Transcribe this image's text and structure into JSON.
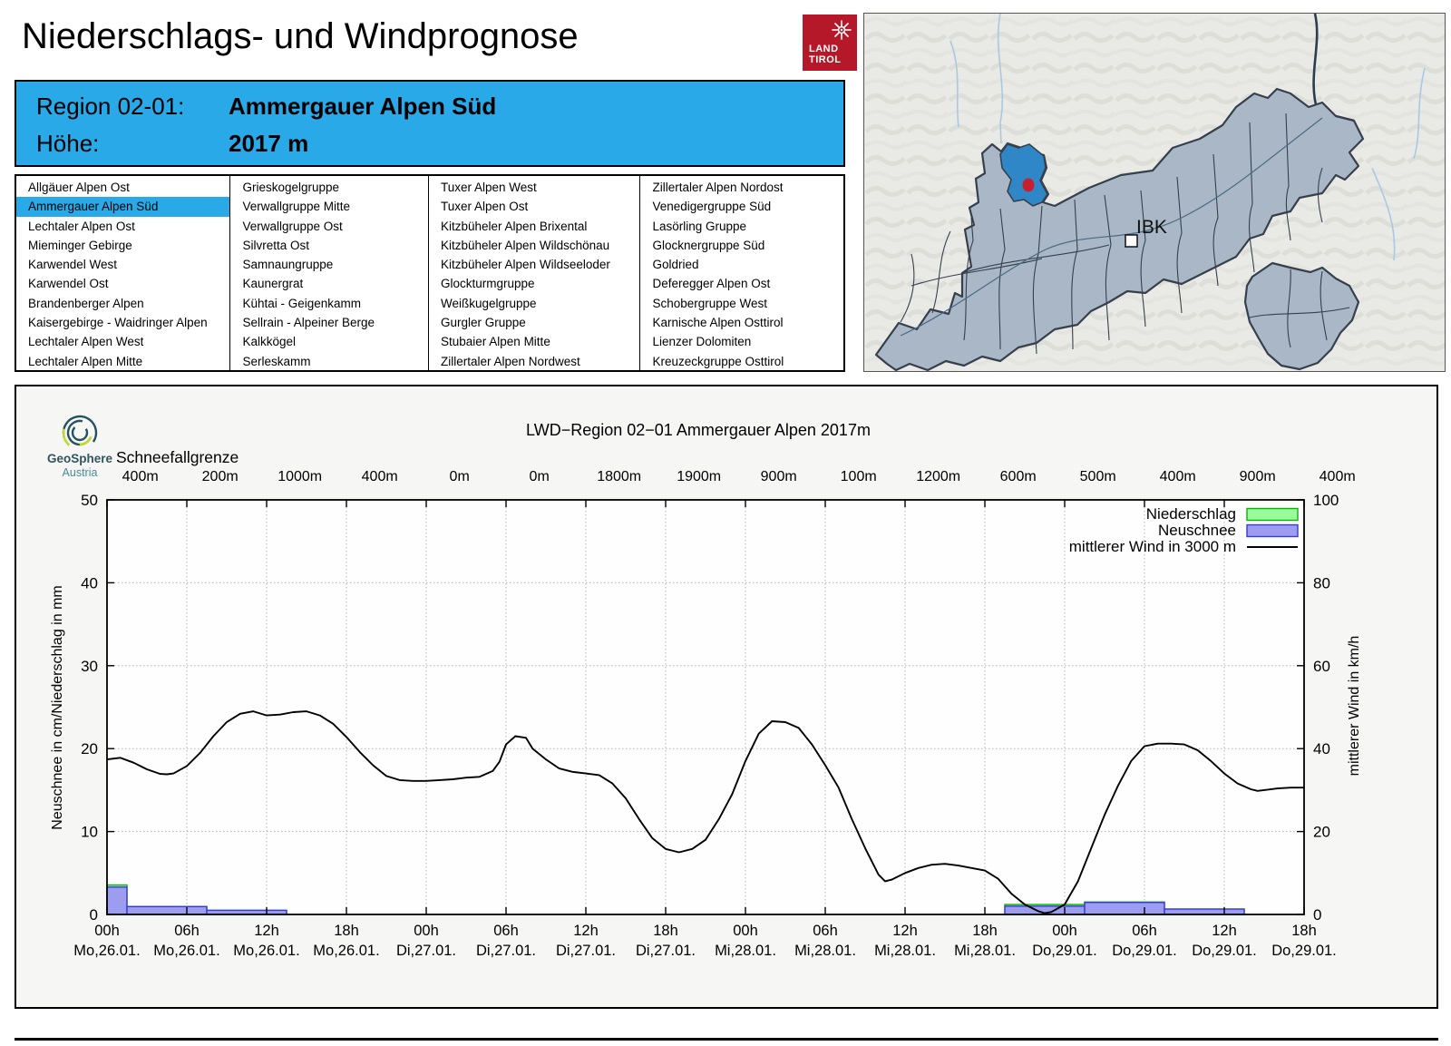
{
  "page": {
    "title": "Niederschlags- und Windprognose"
  },
  "tirol_logo": {
    "line1": "LAND",
    "line2": "TIROL"
  },
  "region_box": {
    "rows": [
      {
        "label": "Region 02-01:",
        "value": "Ammergauer Alpen Süd"
      },
      {
        "label": "Höhe:",
        "value": "2017 m"
      }
    ]
  },
  "region_list": {
    "selected": "Ammergauer Alpen Süd",
    "columns": [
      [
        "Allgäuer Alpen Ost",
        "Ammergauer Alpen Süd",
        "Lechtaler Alpen Ost",
        "Mieminger Gebirge",
        "Karwendel West",
        "Karwendel Ost",
        "Brandenberger Alpen",
        "Kaisergebirge - Waidringer Alpen",
        "Lechtaler Alpen West",
        "Lechtaler Alpen Mitte"
      ],
      [
        "Grieskogelgruppe",
        "Verwallgruppe Mitte",
        "Verwallgruppe Ost",
        "Silvretta Ost",
        "Samnaungruppe",
        "Kaunergrat",
        "Kühtai - Geigenkamm",
        "Sellrain - Alpeiner Berge",
        "Kalkkögel",
        "Serleskamm"
      ],
      [
        "Tuxer Alpen West",
        "Tuxer Alpen Ost",
        "Kitzbüheler Alpen Brixental",
        "Kitzbüheler Alpen Wildschönau",
        "Kitzbüheler Alpen Wildseeloder",
        "Glockturmgruppe",
        "Weißkugelgruppe",
        "Gurgler Gruppe",
        "Stubaier Alpen Mitte",
        "Zillertaler Alpen Nordwest"
      ],
      [
        "Zillertaler Alpen Nordost",
        "Venedigergruppe Süd",
        "Lasörling Gruppe",
        "Glocknergruppe Süd",
        "Goldried",
        "Deferegger Alpen Ost",
        "Schobergruppe West",
        "Karnische Alpen Osttirol",
        "Lienzer Dolomiten",
        "Kreuzeckgruppe Osttirol"
      ]
    ]
  },
  "map": {
    "city_label": "IBK"
  },
  "geosphere_logo": {
    "name": "GeoSphere",
    "sub": "Austria"
  },
  "colors": {
    "accent_blue": "#29a9e8",
    "tirol_red": "#b51929",
    "precip_fill": "#9afb9a",
    "precip_stroke": "#09b409",
    "snow_fill": "#9c9cf0",
    "snow_stroke": "#3a3ad4",
    "wind_line": "#000000",
    "map_region_fill": "#a9b7c6",
    "map_region_stroke": "#36404d",
    "map_highlight": "#2f87c8",
    "map_dot": "#c42030"
  },
  "chart_data": {
    "type": "bar+line",
    "title": "LWD−Region 02−01 Ammergauer Alpen 2017m",
    "snowline_label": "Schneefallgrenze",
    "snowline_values": [
      "400m",
      "200m",
      "1000m",
      "400m",
      "0m",
      "0m",
      "1800m",
      "1900m",
      "900m",
      "100m",
      "1200m",
      "600m",
      "500m",
      "400m",
      "900m",
      "400m"
    ],
    "ylabel_left": "Neuschnee in cm/Niederschlag in mm",
    "ylabel_right": "mittlerer Wind in km/h",
    "ylim_left": [
      0,
      50
    ],
    "ylim_right": [
      0,
      100
    ],
    "left_ticks": [
      0,
      10,
      20,
      30,
      40,
      50
    ],
    "right_ticks": [
      0,
      20,
      40,
      60,
      80,
      100
    ],
    "x_hours_total": 90,
    "x_ticks": [
      {
        "h": "00h",
        "d": "Mo,26.01."
      },
      {
        "h": "06h",
        "d": "Mo,26.01."
      },
      {
        "h": "12h",
        "d": "Mo,26.01."
      },
      {
        "h": "18h",
        "d": "Mo,26.01."
      },
      {
        "h": "00h",
        "d": "Di,27.01."
      },
      {
        "h": "06h",
        "d": "Di,27.01."
      },
      {
        "h": "12h",
        "d": "Di,27.01."
      },
      {
        "h": "18h",
        "d": "Di,27.01."
      },
      {
        "h": "00h",
        "d": "Mi,28.01."
      },
      {
        "h": "06h",
        "d": "Mi,28.01."
      },
      {
        "h": "12h",
        "d": "Mi,28.01."
      },
      {
        "h": "18h",
        "d": "Mi,28.01."
      },
      {
        "h": "00h",
        "d": "Do,29.01."
      },
      {
        "h": "06h",
        "d": "Do,29.01."
      },
      {
        "h": "12h",
        "d": "Do,29.01."
      },
      {
        "h": "18h",
        "d": "Do,29.01."
      }
    ],
    "legend": [
      {
        "label": "Niederschlag",
        "type": "box",
        "fill": "#9afb9a",
        "stroke": "#09b409"
      },
      {
        "label": "Neuschnee",
        "type": "box",
        "fill": "#9c9cf0",
        "stroke": "#3a3ad4"
      },
      {
        "label": "mittlerer Wind in 3000 m",
        "type": "line",
        "stroke": "#000000"
      }
    ],
    "series": [
      {
        "name": "Niederschlag",
        "type": "bar",
        "unit": "mm",
        "bars": [
          [
            0,
            1.5,
            3.55
          ],
          [
            1.5,
            7.5,
            0.95
          ],
          [
            7.5,
            13.5,
            0.5
          ],
          [
            67.5,
            73.5,
            1.2
          ],
          [
            73.5,
            79.5,
            1.5
          ],
          [
            79.5,
            85.5,
            0.65
          ]
        ]
      },
      {
        "name": "Neuschnee",
        "type": "bar",
        "unit": "cm",
        "bars": [
          [
            0,
            1.5,
            3.3
          ],
          [
            1.5,
            7.5,
            0.95
          ],
          [
            7.5,
            13.5,
            0.5
          ],
          [
            67.5,
            73.5,
            1.0
          ],
          [
            73.5,
            79.5,
            1.45
          ],
          [
            79.5,
            85.5,
            0.65
          ]
        ]
      },
      {
        "name": "mittlerer Wind in 3000 m",
        "type": "line",
        "unit": "km/h",
        "points": [
          [
            0,
            37.4
          ],
          [
            1,
            37.8
          ],
          [
            2,
            36.6
          ],
          [
            3,
            35
          ],
          [
            4,
            33.9
          ],
          [
            4.5,
            33.8
          ],
          [
            5,
            34
          ],
          [
            6,
            35.8
          ],
          [
            7,
            39
          ],
          [
            8,
            43
          ],
          [
            9,
            46.4
          ],
          [
            10,
            48.4
          ],
          [
            11,
            49
          ],
          [
            12,
            48
          ],
          [
            13,
            48.2
          ],
          [
            14,
            48.8
          ],
          [
            15,
            49
          ],
          [
            16,
            48
          ],
          [
            17,
            46
          ],
          [
            18,
            42.8
          ],
          [
            19,
            39.2
          ],
          [
            20,
            36
          ],
          [
            21,
            33.4
          ],
          [
            22,
            32.4
          ],
          [
            23,
            32.2
          ],
          [
            24,
            32.2
          ],
          [
            25,
            32.4
          ],
          [
            26,
            32.6
          ],
          [
            27,
            33
          ],
          [
            28,
            33.2
          ],
          [
            29,
            34.6
          ],
          [
            29.5,
            36.8
          ],
          [
            30,
            41
          ],
          [
            30.7,
            43
          ],
          [
            31.5,
            42.6
          ],
          [
            32,
            40
          ],
          [
            33,
            37.4
          ],
          [
            34,
            35.2
          ],
          [
            35,
            34.4
          ],
          [
            36,
            34
          ],
          [
            37,
            33.6
          ],
          [
            38,
            31.6
          ],
          [
            39,
            28
          ],
          [
            40,
            23
          ],
          [
            41,
            18.4
          ],
          [
            42,
            15.8
          ],
          [
            43,
            15
          ],
          [
            44,
            15.8
          ],
          [
            45,
            18
          ],
          [
            46,
            23
          ],
          [
            47,
            29
          ],
          [
            48,
            37
          ],
          [
            49,
            43.6
          ],
          [
            50,
            46.6
          ],
          [
            51,
            46.4
          ],
          [
            52,
            45
          ],
          [
            53,
            41
          ],
          [
            54,
            36
          ],
          [
            55,
            30.6
          ],
          [
            56,
            23
          ],
          [
            57,
            16
          ],
          [
            58,
            9.6
          ],
          [
            58.5,
            8
          ],
          [
            59,
            8.4
          ],
          [
            60,
            10
          ],
          [
            61,
            11.2
          ],
          [
            62,
            12
          ],
          [
            63,
            12.2
          ],
          [
            64,
            11.8
          ],
          [
            65,
            11.2
          ],
          [
            66,
            10.6
          ],
          [
            67,
            8.6
          ],
          [
            68,
            5
          ],
          [
            69,
            2.4
          ],
          [
            70,
            0.8
          ],
          [
            70.5,
            0.3
          ],
          [
            71,
            0.6
          ],
          [
            72,
            2.4
          ],
          [
            73,
            8
          ],
          [
            74,
            16
          ],
          [
            75,
            24
          ],
          [
            76,
            31
          ],
          [
            77,
            37
          ],
          [
            78,
            40.6
          ],
          [
            79,
            41.2
          ],
          [
            80,
            41.2
          ],
          [
            81,
            41
          ],
          [
            82,
            39.6
          ],
          [
            83,
            37
          ],
          [
            84,
            34
          ],
          [
            85,
            31.6
          ],
          [
            86,
            30.2
          ],
          [
            86.5,
            29.8
          ],
          [
            87,
            30
          ],
          [
            88,
            30.4
          ],
          [
            89,
            30.6
          ],
          [
            90,
            30.6
          ]
        ]
      }
    ]
  }
}
